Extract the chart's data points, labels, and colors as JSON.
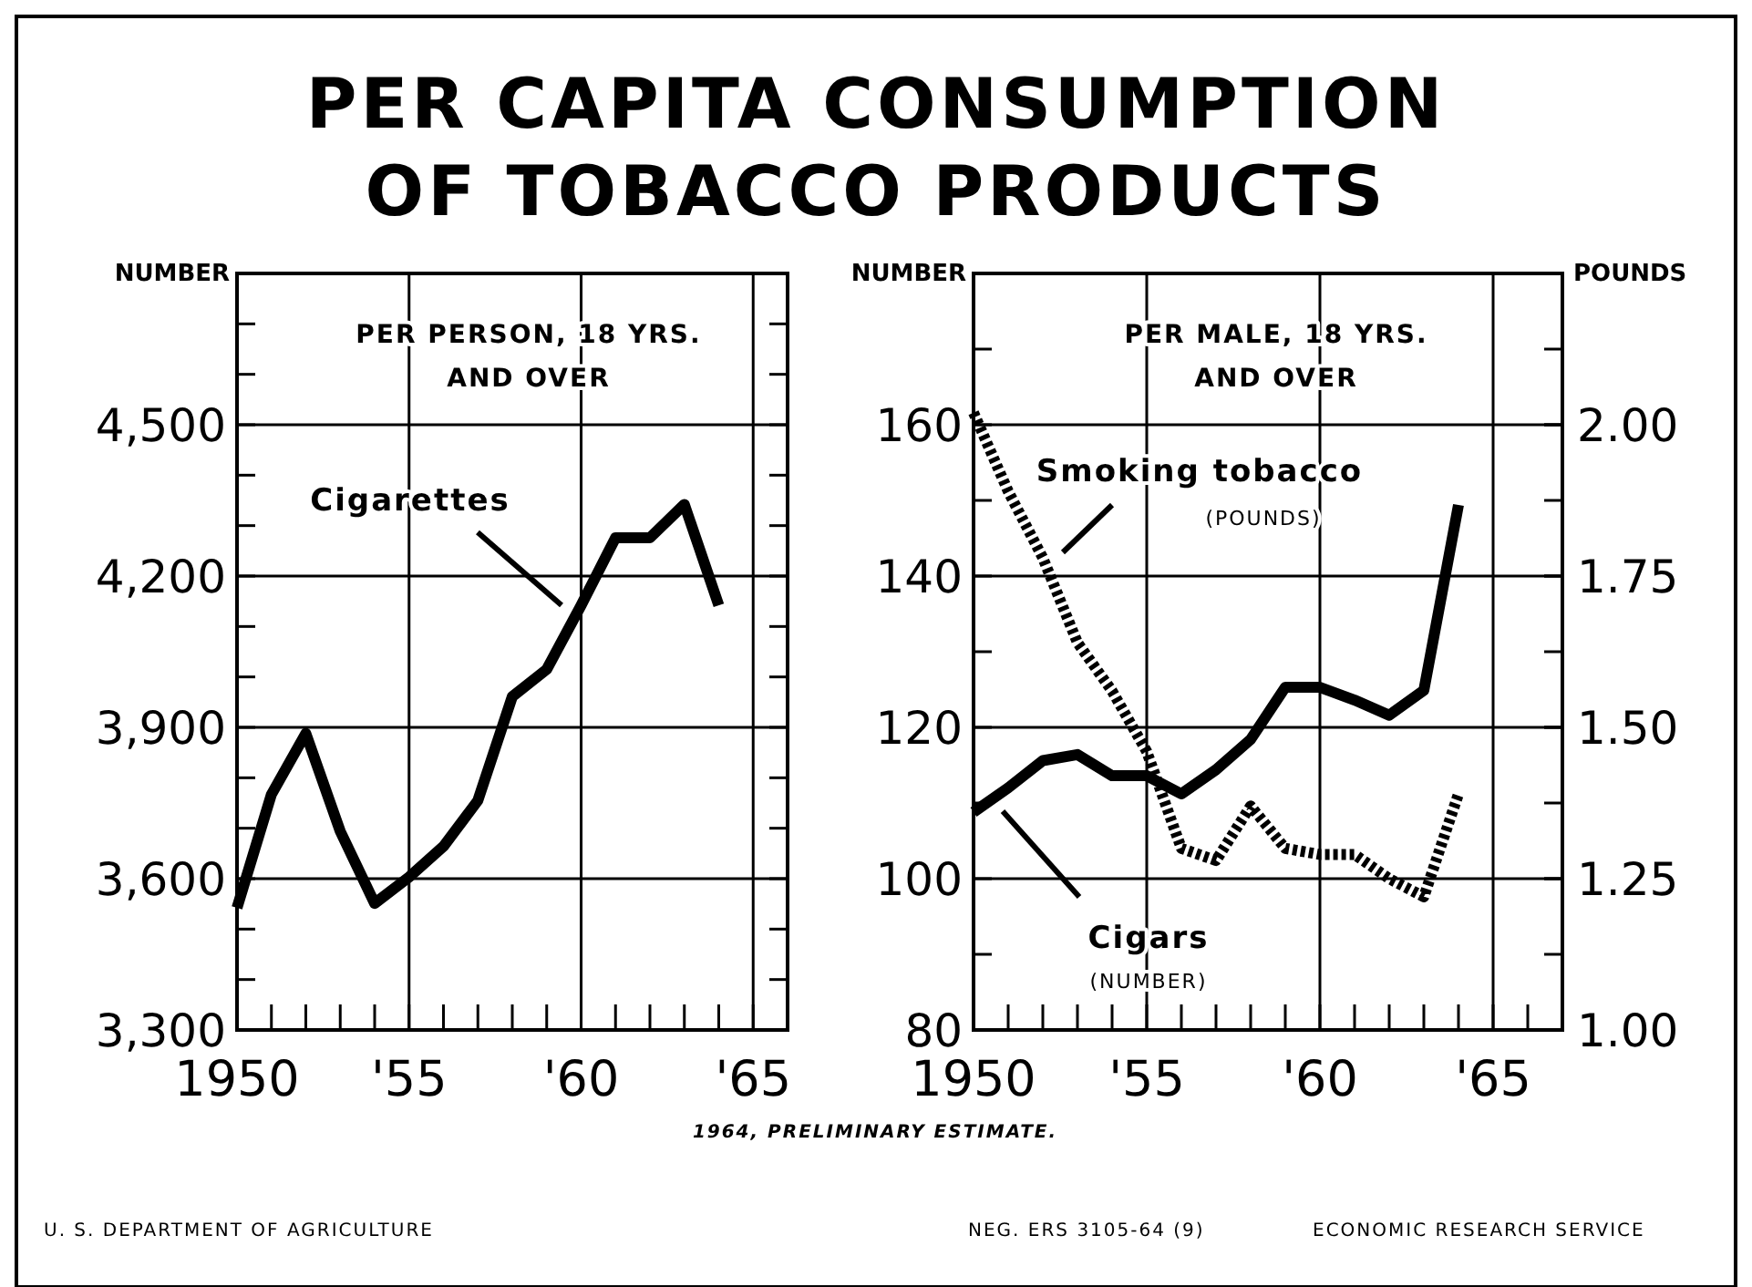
{
  "chart_data": [
    {
      "type": "line",
      "title": "PER CAPITA CONSUMPTION OF TOBACCO PRODUCTS",
      "ylabel": "NUMBER",
      "x": [
        1950,
        1951,
        1952,
        1953,
        1954,
        1955,
        1956,
        1957,
        1958,
        1959,
        1960,
        1961,
        1962,
        1963,
        1964
      ],
      "series": [
        {
          "name": "Cigarettes",
          "color": "#000000",
          "values": [
            3542,
            3767,
            3888,
            3694,
            3551,
            3603,
            3664,
            3755,
            3961,
            4015,
            4142,
            4276,
            4276,
            4342,
            4142
          ]
        }
      ],
      "xlim": [
        1950,
        1966
      ],
      "xticks": [
        {
          "value": 1950,
          "label": "1950"
        },
        {
          "value": 1951,
          "label": null
        },
        {
          "value": 1952,
          "label": null
        },
        {
          "value": 1953,
          "label": null
        },
        {
          "value": 1954,
          "label": null
        },
        {
          "value": 1955,
          "label": "'55"
        },
        {
          "value": 1956,
          "label": null
        },
        {
          "value": 1957,
          "label": null
        },
        {
          "value": 1958,
          "label": null
        },
        {
          "value": 1959,
          "label": null
        },
        {
          "value": 1960,
          "label": "'60"
        },
        {
          "value": 1961,
          "label": null
        },
        {
          "value": 1962,
          "label": null
        },
        {
          "value": 1963,
          "label": null
        },
        {
          "value": 1964,
          "label": null
        },
        {
          "value": 1965,
          "label": "'65"
        }
      ],
      "ylim": [
        3300,
        4800
      ],
      "yticks": [
        {
          "value": 3300,
          "label": "3,300"
        },
        {
          "value": 3400,
          "label": null
        },
        {
          "value": 3500,
          "label": null
        },
        {
          "value": 3600,
          "label": "3,600"
        },
        {
          "value": 3700,
          "label": null
        },
        {
          "value": 3800,
          "label": null
        },
        {
          "value": 3900,
          "label": "3,900"
        },
        {
          "value": 4000,
          "label": null
        },
        {
          "value": 4100,
          "label": null
        },
        {
          "value": 4200,
          "label": "4,200"
        },
        {
          "value": 4300,
          "label": null
        },
        {
          "value": 4400,
          "label": null
        },
        {
          "value": 4500,
          "label": "4,500"
        },
        {
          "value": 4600,
          "label": null
        },
        {
          "value": 4700,
          "label": null
        }
      ],
      "grid": true,
      "line_style": "solid",
      "legend": false,
      "annotations": [
        "PER PERSON, 18 YRS.\nAND OVER"
      ]
    },
    {
      "type": "line",
      "ylabel": "NUMBER",
      "y2label": "POUNDS",
      "x": [
        1950,
        1951,
        1952,
        1953,
        1954,
        1955,
        1956,
        1957,
        1958,
        1959,
        1960,
        1961,
        1962,
        1963,
        1964
      ],
      "series": [
        {
          "name": "Smoking tobacco",
          "color": "#000000",
          "axis": "y2",
          "line_style": "dotted",
          "values": [
            2.02,
            1.89,
            1.78,
            1.64,
            1.56,
            1.46,
            1.3,
            1.28,
            1.37,
            1.3,
            1.29,
            1.29,
            1.25,
            1.22,
            1.39
          ]
        },
        {
          "name": "Cigars",
          "color": "#000000",
          "line_style": "solid",
          "values": [
            108.8,
            112,
            115.6,
            116.4,
            113.6,
            113.6,
            111.2,
            114.4,
            118.4,
            125.3,
            125.3,
            123.6,
            121.6,
            124.9,
            149.4
          ]
        }
      ],
      "xlim": [
        1950,
        1967
      ],
      "xticks": [
        {
          "value": 1950,
          "label": "1950"
        },
        {
          "value": 1951,
          "label": null
        },
        {
          "value": 1952,
          "label": null
        },
        {
          "value": 1953,
          "label": null
        },
        {
          "value": 1954,
          "label": null
        },
        {
          "value": 1955,
          "label": "'55"
        },
        {
          "value": 1956,
          "label": null
        },
        {
          "value": 1957,
          "label": null
        },
        {
          "value": 1958,
          "label": null
        },
        {
          "value": 1959,
          "label": null
        },
        {
          "value": 1960,
          "label": "'60"
        },
        {
          "value": 1961,
          "label": null
        },
        {
          "value": 1962,
          "label": null
        },
        {
          "value": 1963,
          "label": null
        },
        {
          "value": 1964,
          "label": null
        },
        {
          "value": 1965,
          "label": "'65"
        },
        {
          "value": 1966,
          "label": null
        }
      ],
      "ylim": [
        80,
        180
      ],
      "yticks": [
        {
          "value": 80,
          "label": "80"
        },
        {
          "value": 90,
          "label": null
        },
        {
          "value": 100,
          "label": "100"
        },
        {
          "value": 110,
          "label": null
        },
        {
          "value": 120,
          "label": "120"
        },
        {
          "value": 130,
          "label": null
        },
        {
          "value": 140,
          "label": "140"
        },
        {
          "value": 150,
          "label": null
        },
        {
          "value": 160,
          "label": "160"
        },
        {
          "value": 170,
          "label": null
        }
      ],
      "y2lim": [
        1,
        2.25
      ],
      "y2ticks": [
        {
          "value": 1,
          "label": "1.00"
        },
        {
          "value": 1.25,
          "label": "1.25"
        },
        {
          "value": 1.5,
          "label": "1.50"
        },
        {
          "value": 1.75,
          "label": "1.75"
        },
        {
          "value": 2,
          "label": "2.00"
        }
      ],
      "grid": true,
      "legend": false,
      "annotations": [
        "PER MALE, 18 YRS.\nAND OVER",
        "(POUNDS)",
        "(NUMBER)",
        "1964, PRELIMINARY ESTIMATE.",
        "U. S. DEPARTMENT OF AGRICULTURE",
        "NEG. ERS 3105-64 (9)",
        "ECONOMIC RESEARCH SERVICE"
      ]
    }
  ]
}
